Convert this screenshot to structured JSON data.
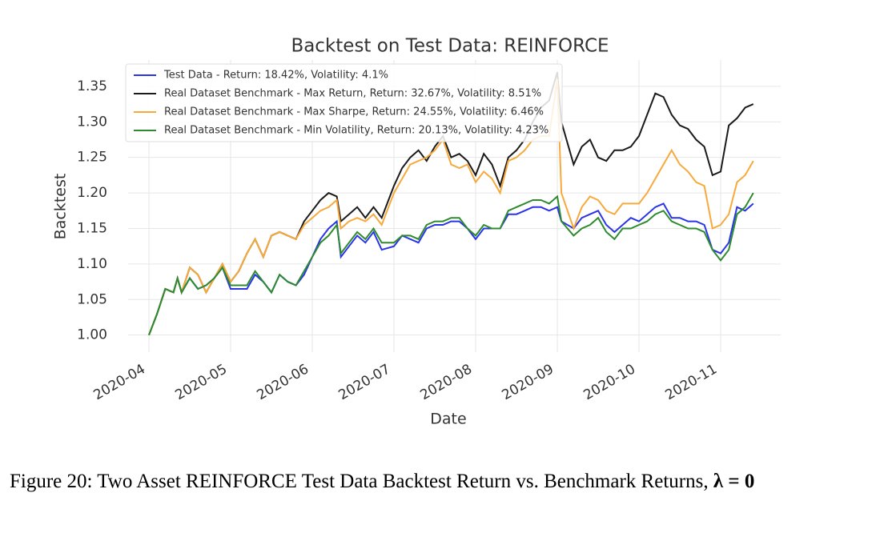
{
  "chart_data": {
    "type": "line",
    "title": "Backtest on Test Data: REINFORCE",
    "x_label": "Date",
    "y_label": "Backtest",
    "x": [
      4.0,
      4.1,
      4.2,
      4.3,
      4.35,
      4.4,
      4.5,
      4.6,
      4.7,
      4.8,
      4.9,
      5.0,
      5.1,
      5.2,
      5.3,
      5.4,
      5.5,
      5.6,
      5.7,
      5.8,
      5.9,
      6.0,
      6.1,
      6.2,
      6.3,
      6.35,
      6.45,
      6.55,
      6.65,
      6.75,
      6.85,
      7.0,
      7.1,
      7.2,
      7.3,
      7.4,
      7.5,
      7.6,
      7.7,
      7.8,
      7.9,
      8.0,
      8.1,
      8.2,
      8.3,
      8.4,
      8.5,
      8.6,
      8.7,
      8.8,
      8.9,
      9.0,
      9.05,
      9.2,
      9.3,
      9.4,
      9.5,
      9.6,
      9.7,
      9.8,
      9.9,
      10.0,
      10.1,
      10.2,
      10.3,
      10.4,
      10.5,
      10.6,
      10.7,
      10.8,
      10.9,
      11.0,
      11.1,
      11.2,
      11.3,
      11.4
    ],
    "series": [
      {
        "name": "Test Data - Return: 18.42%, Volatility: 4.1%",
        "color": "#2b35e8",
        "values": [
          1.0,
          1.03,
          1.065,
          1.06,
          1.08,
          1.06,
          1.08,
          1.065,
          1.07,
          1.08,
          1.095,
          1.065,
          1.065,
          1.065,
          1.085,
          1.075,
          1.06,
          1.085,
          1.075,
          1.07,
          1.085,
          1.11,
          1.135,
          1.15,
          1.16,
          1.11,
          1.125,
          1.14,
          1.13,
          1.145,
          1.12,
          1.125,
          1.14,
          1.135,
          1.13,
          1.15,
          1.155,
          1.155,
          1.16,
          1.16,
          1.15,
          1.135,
          1.15,
          1.15,
          1.15,
          1.17,
          1.17,
          1.175,
          1.18,
          1.18,
          1.175,
          1.18,
          1.16,
          1.15,
          1.165,
          1.17,
          1.175,
          1.155,
          1.145,
          1.155,
          1.165,
          1.16,
          1.17,
          1.18,
          1.185,
          1.165,
          1.165,
          1.16,
          1.16,
          1.155,
          1.12,
          1.115,
          1.13,
          1.18,
          1.175,
          1.185
        ]
      },
      {
        "name": "Real Dataset Benchmark - Max Return, Return: 32.67%, Volatility: 8.51%",
        "color": "#1a1a1a",
        "values": [
          1.0,
          1.03,
          1.065,
          1.06,
          1.08,
          1.06,
          1.095,
          1.085,
          1.06,
          1.08,
          1.1,
          1.075,
          1.09,
          1.115,
          1.135,
          1.11,
          1.14,
          1.145,
          1.14,
          1.135,
          1.16,
          1.175,
          1.19,
          1.2,
          1.195,
          1.16,
          1.17,
          1.18,
          1.165,
          1.18,
          1.165,
          1.21,
          1.235,
          1.25,
          1.26,
          1.245,
          1.265,
          1.28,
          1.25,
          1.255,
          1.245,
          1.225,
          1.255,
          1.24,
          1.21,
          1.25,
          1.26,
          1.275,
          1.3,
          1.32,
          1.33,
          1.37,
          1.3,
          1.24,
          1.265,
          1.275,
          1.25,
          1.245,
          1.26,
          1.26,
          1.265,
          1.28,
          1.31,
          1.34,
          1.335,
          1.31,
          1.295,
          1.29,
          1.275,
          1.265,
          1.225,
          1.23,
          1.295,
          1.305,
          1.32,
          1.325
        ]
      },
      {
        "name": "Real Dataset Benchmark - Max Sharpe, Return: 24.55%, Volatility: 6.46%",
        "color": "#f7a93b",
        "values": [
          1.0,
          1.03,
          1.065,
          1.06,
          1.08,
          1.06,
          1.095,
          1.085,
          1.06,
          1.08,
          1.1,
          1.075,
          1.09,
          1.115,
          1.135,
          1.11,
          1.14,
          1.145,
          1.14,
          1.135,
          1.155,
          1.165,
          1.175,
          1.18,
          1.19,
          1.15,
          1.16,
          1.165,
          1.16,
          1.17,
          1.155,
          1.2,
          1.22,
          1.24,
          1.245,
          1.25,
          1.26,
          1.275,
          1.24,
          1.235,
          1.24,
          1.215,
          1.23,
          1.22,
          1.2,
          1.245,
          1.25,
          1.26,
          1.275,
          1.28,
          1.28,
          1.36,
          1.2,
          1.15,
          1.18,
          1.195,
          1.19,
          1.175,
          1.17,
          1.185,
          1.185,
          1.185,
          1.2,
          1.22,
          1.24,
          1.26,
          1.24,
          1.23,
          1.215,
          1.21,
          1.15,
          1.155,
          1.17,
          1.215,
          1.225,
          1.245
        ]
      },
      {
        "name": "Real Dataset Benchmark - Min Volatility, Return: 20.13%, Volatility: 4.23%",
        "color": "#2e8b2e",
        "values": [
          1.0,
          1.03,
          1.065,
          1.06,
          1.08,
          1.06,
          1.08,
          1.065,
          1.07,
          1.08,
          1.095,
          1.07,
          1.07,
          1.07,
          1.09,
          1.075,
          1.06,
          1.085,
          1.075,
          1.07,
          1.09,
          1.11,
          1.13,
          1.14,
          1.155,
          1.115,
          1.13,
          1.145,
          1.135,
          1.15,
          1.13,
          1.13,
          1.14,
          1.14,
          1.135,
          1.155,
          1.16,
          1.16,
          1.165,
          1.165,
          1.15,
          1.14,
          1.155,
          1.15,
          1.15,
          1.175,
          1.18,
          1.185,
          1.19,
          1.19,
          1.185,
          1.195,
          1.16,
          1.14,
          1.15,
          1.155,
          1.165,
          1.145,
          1.135,
          1.15,
          1.15,
          1.155,
          1.16,
          1.17,
          1.175,
          1.16,
          1.155,
          1.15,
          1.15,
          1.145,
          1.12,
          1.105,
          1.12,
          1.17,
          1.18,
          1.2
        ]
      }
    ],
    "xlim": [
      3.745,
      11.735
    ],
    "xticks": [
      {
        "value": 4,
        "label": "2020-04"
      },
      {
        "value": 5,
        "label": "2020-05"
      },
      {
        "value": 6,
        "label": "2020-06"
      },
      {
        "value": 7,
        "label": "2020-07"
      },
      {
        "value": 8,
        "label": "2020-08"
      },
      {
        "value": 9,
        "label": "2020-09"
      },
      {
        "value": 10,
        "label": "2020-10"
      },
      {
        "value": 11,
        "label": "2020-11"
      }
    ],
    "ylim": [
      0.976,
      1.387
    ],
    "yticks": [
      {
        "value": 1,
        "label": "1.00"
      },
      {
        "value": 1.05,
        "label": "1.05"
      },
      {
        "value": 1.1,
        "label": "1.10"
      },
      {
        "value": 1.15,
        "label": "1.15"
      },
      {
        "value": 1.2,
        "label": "1.20"
      },
      {
        "value": 1.25,
        "label": "1.25"
      },
      {
        "value": 1.3,
        "label": "1.30"
      },
      {
        "value": 1.35,
        "label": "1.35"
      }
    ],
    "grid": true,
    "legend": "upper left"
  },
  "caption": {
    "text": "Figure 20: Two Asset REINFORCE Test Data Backtest Return vs. Benchmark Returns,",
    "math": "λ = 0"
  }
}
